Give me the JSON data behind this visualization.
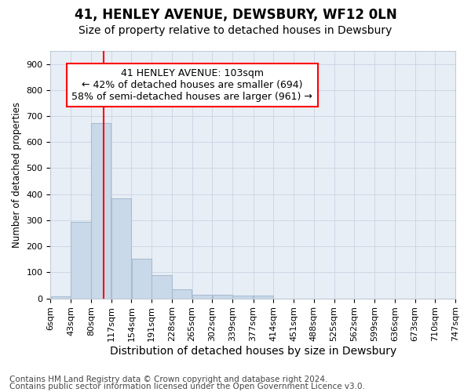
{
  "title": "41, HENLEY AVENUE, DEWSBURY, WF12 0LN",
  "subtitle": "Size of property relative to detached houses in Dewsbury",
  "xlabel": "Distribution of detached houses by size in Dewsbury",
  "ylabel": "Number of detached properties",
  "bar_edges": [
    6,
    43,
    80,
    117,
    154,
    191,
    228,
    265,
    302,
    339,
    377,
    414,
    451,
    488,
    525,
    562,
    599,
    636,
    673,
    710,
    747
  ],
  "bar_heights": [
    8,
    295,
    672,
    385,
    152,
    90,
    36,
    14,
    13,
    11,
    11,
    0,
    0,
    0,
    0,
    0,
    0,
    0,
    0,
    0
  ],
  "bar_color": "#c9d9ea",
  "bar_edgecolor": "#a8bdd0",
  "property_line_x": 103,
  "annotation_line1": "41 HENLEY AVENUE: 103sqm",
  "annotation_line2": "← 42% of detached houses are smaller (694)",
  "annotation_line3": "58% of semi-detached houses are larger (961) →",
  "annotation_box_color": "white",
  "annotation_box_edgecolor": "red",
  "line_color": "red",
  "ylim": [
    0,
    950
  ],
  "yticks": [
    0,
    100,
    200,
    300,
    400,
    500,
    600,
    700,
    800,
    900
  ],
  "tick_labels": [
    "6sqm",
    "43sqm",
    "80sqm",
    "117sqm",
    "154sqm",
    "191sqm",
    "228sqm",
    "265sqm",
    "302sqm",
    "339sqm",
    "377sqm",
    "414sqm",
    "451sqm",
    "488sqm",
    "525sqm",
    "562sqm",
    "599sqm",
    "636sqm",
    "673sqm",
    "710sqm",
    "747sqm"
  ],
  "footer_line1": "Contains HM Land Registry data © Crown copyright and database right 2024.",
  "footer_line2": "Contains public sector information licensed under the Open Government Licence v3.0.",
  "bg_color": "white",
  "plot_bg_color": "#e8eef6",
  "grid_color": "#c8d4e4",
  "title_fontsize": 12,
  "subtitle_fontsize": 10,
  "xlabel_fontsize": 10,
  "ylabel_fontsize": 8.5,
  "tick_fontsize": 8,
  "footer_fontsize": 7.5,
  "annotation_fontsize": 9
}
